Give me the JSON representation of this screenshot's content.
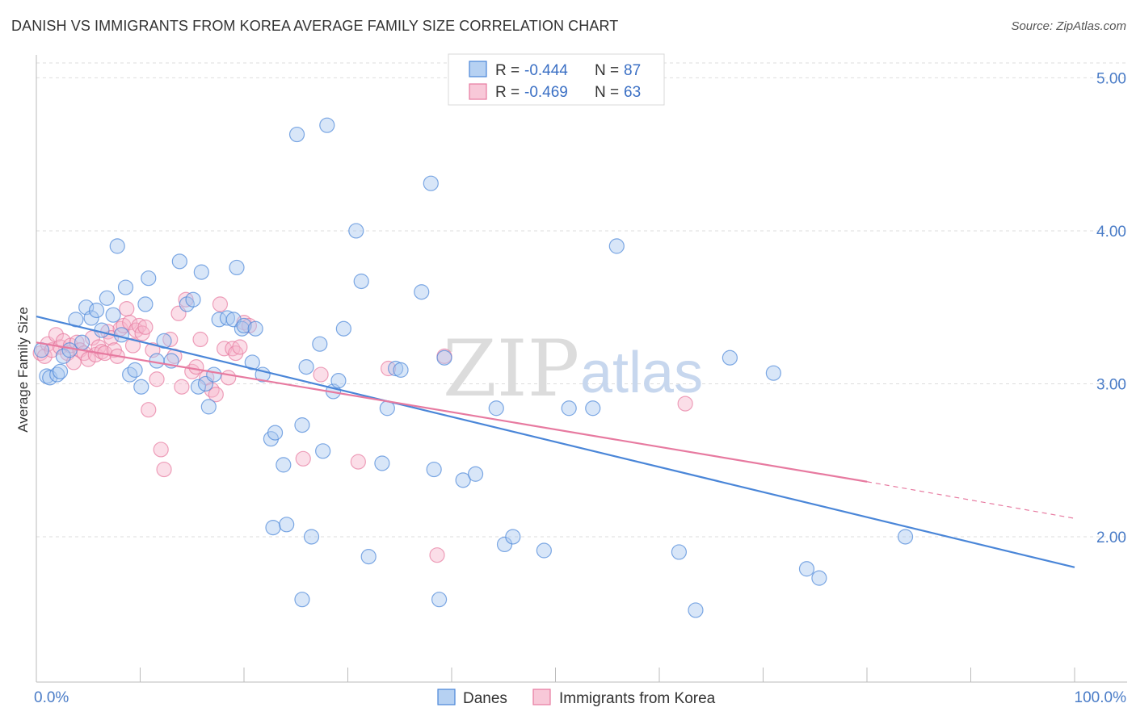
{
  "header": {
    "title": "DANISH VS IMMIGRANTS FROM KOREA AVERAGE FAMILY SIZE CORRELATION CHART",
    "source": "Source: ZipAtlas.com"
  },
  "watermark": {
    "part1": "ZIP",
    "part2": "atlas"
  },
  "legend": {
    "r_label": "R =",
    "n_label": "N =",
    "rows": [
      {
        "r": "-0.444",
        "n": "87",
        "color": "#9ec2ee"
      },
      {
        "r": "-0.469",
        "n": "63",
        "color": "#f6b6cb"
      }
    ]
  },
  "bottom_legend": [
    "Danes",
    "Immigrants from Korea"
  ],
  "chart_data": {
    "type": "scatter",
    "title": "DANISH VS IMMIGRANTS FROM KOREA AVERAGE FAMILY SIZE CORRELATION CHART",
    "xlabel": "",
    "ylabel": "Average Family Size",
    "xlim": [
      0,
      100
    ],
    "ylim": [
      1.05,
      5.15
    ],
    "x_tick_labels": [
      "0.0%",
      "100.0%"
    ],
    "y_ticks": [
      2.0,
      3.0,
      4.0,
      5.0
    ],
    "y_tick_labels": [
      "2.00",
      "3.00",
      "4.00",
      "5.00"
    ],
    "colors": {
      "danes": "#4a86d8",
      "korea": "#e77aa0"
    },
    "series": [
      {
        "name": "Danes",
        "r": -0.444,
        "n": 87,
        "trend": {
          "x0": 0,
          "y0": 3.44,
          "x1": 100,
          "y1": 1.8
        },
        "points": [
          [
            0.5,
            3.22
          ],
          [
            1.0,
            3.05
          ],
          [
            1.3,
            3.04
          ],
          [
            2.0,
            3.06
          ],
          [
            2.3,
            3.08
          ],
          [
            2.6,
            3.18
          ],
          [
            3.2,
            3.22
          ],
          [
            3.8,
            3.42
          ],
          [
            4.4,
            3.27
          ],
          [
            4.8,
            3.5
          ],
          [
            5.3,
            3.43
          ],
          [
            5.8,
            3.48
          ],
          [
            6.3,
            3.35
          ],
          [
            6.8,
            3.56
          ],
          [
            7.4,
            3.45
          ],
          [
            7.8,
            3.9
          ],
          [
            8.2,
            3.32
          ],
          [
            8.6,
            3.63
          ],
          [
            9.0,
            3.06
          ],
          [
            9.5,
            3.09
          ],
          [
            10.1,
            2.98
          ],
          [
            10.5,
            3.52
          ],
          [
            10.8,
            3.69
          ],
          [
            11.6,
            3.15
          ],
          [
            12.3,
            3.28
          ],
          [
            13.0,
            3.15
          ],
          [
            13.8,
            3.8
          ],
          [
            14.5,
            3.52
          ],
          [
            15.1,
            3.55
          ],
          [
            15.6,
            2.98
          ],
          [
            15.9,
            3.73
          ],
          [
            16.3,
            3.0
          ],
          [
            16.6,
            2.85
          ],
          [
            17.1,
            3.06
          ],
          [
            17.6,
            3.42
          ],
          [
            18.4,
            3.43
          ],
          [
            19.0,
            3.42
          ],
          [
            19.3,
            3.76
          ],
          [
            19.8,
            3.36
          ],
          [
            20.0,
            3.38
          ],
          [
            20.8,
            3.14
          ],
          [
            21.1,
            3.36
          ],
          [
            21.8,
            3.06
          ],
          [
            22.6,
            2.64
          ],
          [
            23.0,
            2.68
          ],
          [
            22.8,
            2.06
          ],
          [
            23.8,
            2.47
          ],
          [
            24.1,
            2.08
          ],
          [
            25.1,
            4.63
          ],
          [
            25.6,
            2.73
          ],
          [
            25.6,
            1.59
          ],
          [
            26.0,
            3.11
          ],
          [
            26.5,
            2.0
          ],
          [
            27.3,
            3.26
          ],
          [
            27.6,
            2.56
          ],
          [
            28.0,
            4.69
          ],
          [
            28.6,
            2.95
          ],
          [
            29.1,
            3.02
          ],
          [
            29.6,
            3.36
          ],
          [
            30.8,
            4.0
          ],
          [
            31.3,
            3.67
          ],
          [
            32.0,
            1.87
          ],
          [
            33.3,
            2.48
          ],
          [
            33.8,
            2.84
          ],
          [
            34.6,
            3.1
          ],
          [
            35.1,
            3.09
          ],
          [
            37.1,
            3.6
          ],
          [
            38.0,
            4.31
          ],
          [
            38.3,
            2.44
          ],
          [
            38.8,
            1.59
          ],
          [
            39.3,
            3.17
          ],
          [
            41.1,
            2.37
          ],
          [
            42.3,
            2.41
          ],
          [
            44.3,
            2.84
          ],
          [
            45.1,
            1.95
          ],
          [
            45.9,
            2.0
          ],
          [
            48.9,
            1.91
          ],
          [
            51.3,
            2.84
          ],
          [
            53.6,
            2.84
          ],
          [
            55.9,
            3.9
          ],
          [
            61.9,
            1.9
          ],
          [
            63.5,
            1.52
          ],
          [
            66.8,
            3.17
          ],
          [
            71.0,
            3.07
          ],
          [
            74.2,
            1.79
          ],
          [
            75.4,
            1.73
          ],
          [
            83.7,
            2.0
          ]
        ]
      },
      {
        "name": "Immigrants from Korea",
        "r": -0.469,
        "n": 63,
        "trend": {
          "x0": 0,
          "y0": 3.27,
          "x1": 80,
          "y1": 2.36,
          "dash_x1": 100,
          "dash_y1": 2.12
        },
        "points": [
          [
            0.4,
            3.2
          ],
          [
            0.8,
            3.18
          ],
          [
            1.1,
            3.26
          ],
          [
            1.5,
            3.22
          ],
          [
            1.9,
            3.32
          ],
          [
            2.3,
            3.24
          ],
          [
            2.6,
            3.28
          ],
          [
            3.0,
            3.2
          ],
          [
            3.3,
            3.25
          ],
          [
            3.6,
            3.14
          ],
          [
            3.9,
            3.27
          ],
          [
            4.2,
            3.22
          ],
          [
            4.6,
            3.2
          ],
          [
            5.0,
            3.16
          ],
          [
            5.4,
            3.3
          ],
          [
            5.7,
            3.19
          ],
          [
            6.0,
            3.24
          ],
          [
            6.3,
            3.21
          ],
          [
            6.6,
            3.2
          ],
          [
            6.9,
            3.34
          ],
          [
            7.2,
            3.3
          ],
          [
            7.5,
            3.22
          ],
          [
            7.8,
            3.18
          ],
          [
            8.1,
            3.36
          ],
          [
            8.4,
            3.38
          ],
          [
            8.7,
            3.49
          ],
          [
            9.0,
            3.4
          ],
          [
            9.3,
            3.25
          ],
          [
            9.6,
            3.35
          ],
          [
            9.9,
            3.38
          ],
          [
            10.2,
            3.33
          ],
          [
            10.5,
            3.37
          ],
          [
            10.8,
            2.83
          ],
          [
            11.2,
            3.22
          ],
          [
            11.6,
            3.03
          ],
          [
            12.0,
            2.57
          ],
          [
            12.3,
            2.44
          ],
          [
            12.9,
            3.29
          ],
          [
            13.3,
            3.18
          ],
          [
            13.7,
            3.46
          ],
          [
            14.0,
            2.98
          ],
          [
            14.4,
            3.55
          ],
          [
            15.0,
            3.08
          ],
          [
            15.4,
            3.11
          ],
          [
            15.8,
            3.29
          ],
          [
            16.4,
            3.04
          ],
          [
            16.9,
            2.96
          ],
          [
            17.3,
            2.93
          ],
          [
            17.7,
            3.52
          ],
          [
            18.1,
            3.23
          ],
          [
            18.5,
            3.04
          ],
          [
            18.9,
            3.23
          ],
          [
            19.2,
            3.2
          ],
          [
            19.6,
            3.24
          ],
          [
            20.0,
            3.4
          ],
          [
            20.5,
            3.38
          ],
          [
            25.7,
            2.51
          ],
          [
            27.4,
            3.06
          ],
          [
            31.0,
            2.49
          ],
          [
            33.9,
            3.1
          ],
          [
            38.6,
            1.88
          ],
          [
            39.3,
            3.18
          ],
          [
            62.5,
            2.87
          ]
        ]
      }
    ]
  }
}
